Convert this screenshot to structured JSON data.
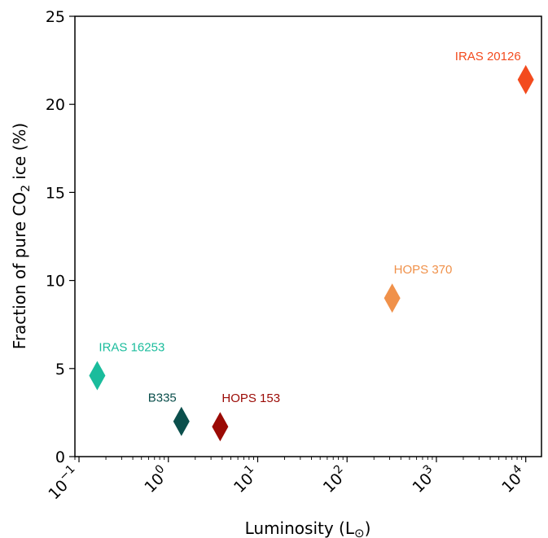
{
  "chart_data": {
    "type": "scatter",
    "xscale": "log",
    "xlim": [
      0.09,
      15000
    ],
    "ylim": [
      0,
      25
    ],
    "xlabel": "Luminosity (L",
    "xlabel_symbol": "⊙",
    "xlabel_close": ")",
    "ylabel": "Fraction of pure CO",
    "ylabel_sub": "2",
    "ylabel_rest": " ice (%)",
    "grid": false,
    "x_ticks": [
      {
        "value": 0.1,
        "base": "10",
        "exp": "−1"
      },
      {
        "value": 1,
        "base": "10",
        "exp": "0"
      },
      {
        "value": 10,
        "base": "10",
        "exp": "1"
      },
      {
        "value": 100,
        "base": "10",
        "exp": "2"
      },
      {
        "value": 1000,
        "base": "10",
        "exp": "3"
      },
      {
        "value": 10000,
        "base": "10",
        "exp": "4"
      }
    ],
    "y_ticks": [
      {
        "value": 0,
        "label": "0"
      },
      {
        "value": 5,
        "label": "5"
      },
      {
        "value": 10,
        "label": "10"
      },
      {
        "value": 15,
        "label": "15"
      },
      {
        "value": 20,
        "label": "20"
      },
      {
        "value": 25,
        "label": "25"
      }
    ],
    "points": [
      {
        "label": "IRAS 16253",
        "x": 0.16,
        "y": 4.6,
        "color": "#1abc9c",
        "label_pos": "above-right"
      },
      {
        "label": "B335",
        "x": 1.4,
        "y": 2.0,
        "color": "#0b4f4c",
        "label_pos": "above-left"
      },
      {
        "label": "HOPS 153",
        "x": 3.8,
        "y": 1.7,
        "color": "#9b0a05",
        "label_pos": "above-right"
      },
      {
        "label": "HOPS 370",
        "x": 320,
        "y": 9.0,
        "color": "#f0914a",
        "label_pos": "above-right"
      },
      {
        "label": "IRAS 20126",
        "x": 10000,
        "y": 21.4,
        "color": "#f34b1e",
        "label_pos": "above-left"
      }
    ]
  }
}
